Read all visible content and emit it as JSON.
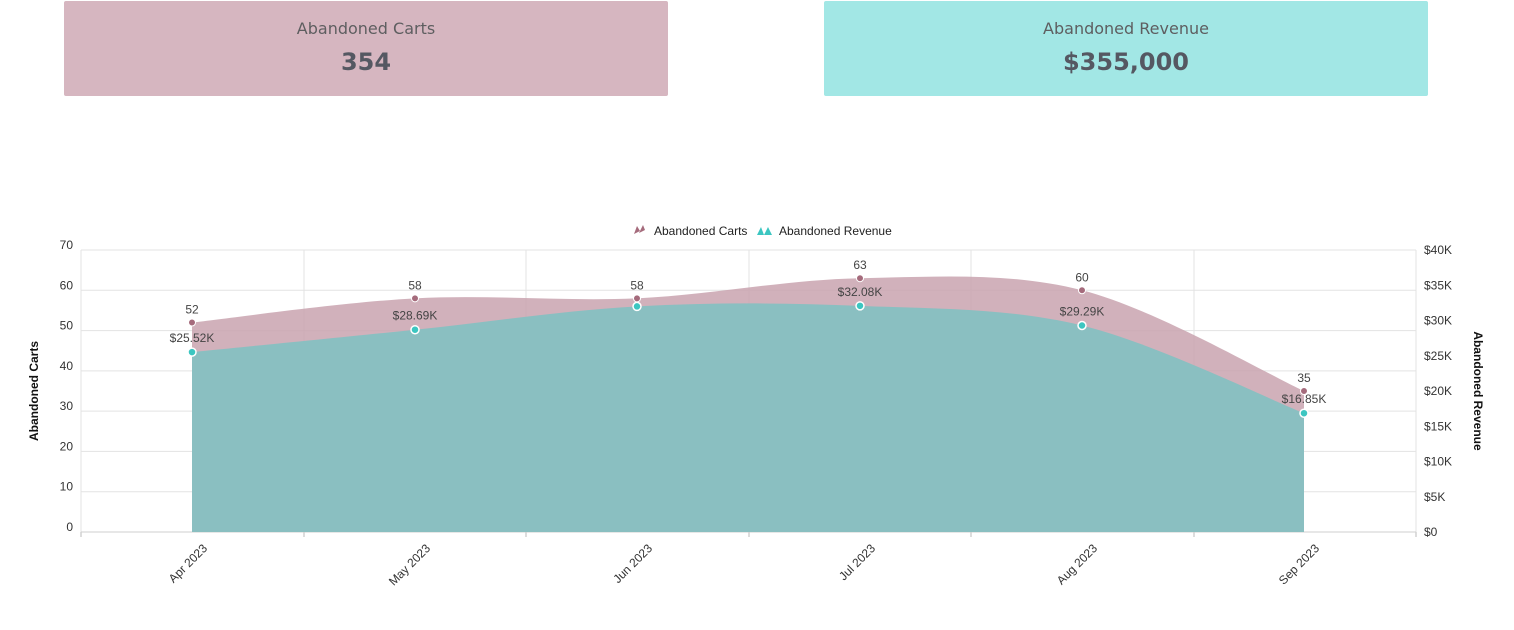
{
  "kpis": {
    "carts": {
      "label": "Abandoned Carts",
      "value": "354"
    },
    "revenue": {
      "label": "Abandoned Revenue",
      "value": "$355,000"
    }
  },
  "colors": {
    "carts_fill": "#c9a3af",
    "carts_point": "#a56b7c",
    "revenue_fill": "#86c0c1",
    "revenue_point": "#3cc6c1",
    "grid": "#e3e3e3"
  },
  "chart_data": {
    "type": "area",
    "categories": [
      "Apr 2023",
      "May 2023",
      "Jun 2023",
      "Jul 2023",
      "Aug 2023",
      "Sep 2023"
    ],
    "series": [
      {
        "name": "Abandoned Carts",
        "axis": "left",
        "values": [
          52,
          58,
          58,
          63,
          60,
          35
        ],
        "labels": [
          "52",
          "58",
          "58",
          "63",
          "60",
          "35"
        ]
      },
      {
        "name": "Abandoned Revenue",
        "axis": "right",
        "values": [
          25520,
          28690,
          32000,
          32080,
          29290,
          16850
        ],
        "labels": [
          "$25.52K",
          "$28.69K",
          "",
          "$32.08K",
          "$29.29K",
          "$16.85K"
        ]
      }
    ],
    "ylabel": "Abandoned Carts",
    "y2label": "Abandoned Revenue",
    "ylim": [
      0,
      70
    ],
    "y2lim": [
      0,
      40000
    ],
    "yticks": [
      "0",
      "10",
      "20",
      "30",
      "40",
      "50",
      "60",
      "70"
    ],
    "y2ticks": [
      "$0",
      "$5K",
      "$10K",
      "$15K",
      "$20K",
      "$25K",
      "$30K",
      "$35K",
      "$40K"
    ],
    "legend": "top-center",
    "grid": true
  }
}
